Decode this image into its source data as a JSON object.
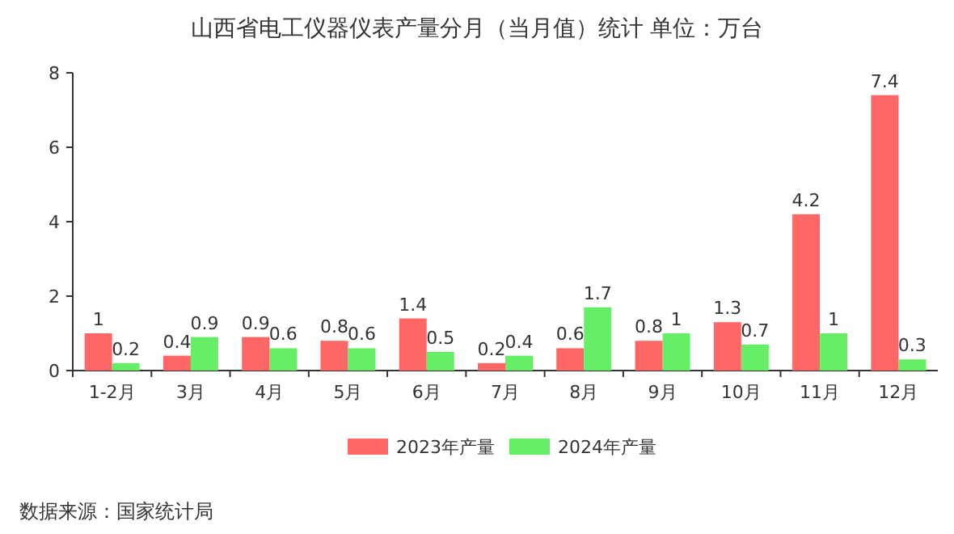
{
  "chart_data": {
    "type": "bar",
    "title": "山西省电工仪器仪表产量分月（当月值）统计  单位：万台",
    "categories": [
      "1-2月",
      "3月",
      "4月",
      "5月",
      "6月",
      "7月",
      "8月",
      "9月",
      "10月",
      "11月",
      "12月"
    ],
    "series": [
      {
        "name": "2023年产量",
        "color": "#ff6666",
        "values": [
          1,
          0.4,
          0.9,
          0.8,
          1.4,
          0.2,
          0.6,
          0.8,
          1.3,
          4.2,
          7.4
        ]
      },
      {
        "name": "2024年产量",
        "color": "#66ee66",
        "values": [
          0.2,
          0.9,
          0.6,
          0.6,
          0.5,
          0.4,
          1.7,
          1,
          0.7,
          1,
          0.3
        ]
      }
    ],
    "ylim": [
      0,
      8
    ],
    "yticks": [
      0,
      2,
      4,
      6,
      8
    ],
    "grid": false,
    "legend": "bottom",
    "data_labels": true,
    "annotations": [
      "数据来源：国家统计局"
    ]
  }
}
